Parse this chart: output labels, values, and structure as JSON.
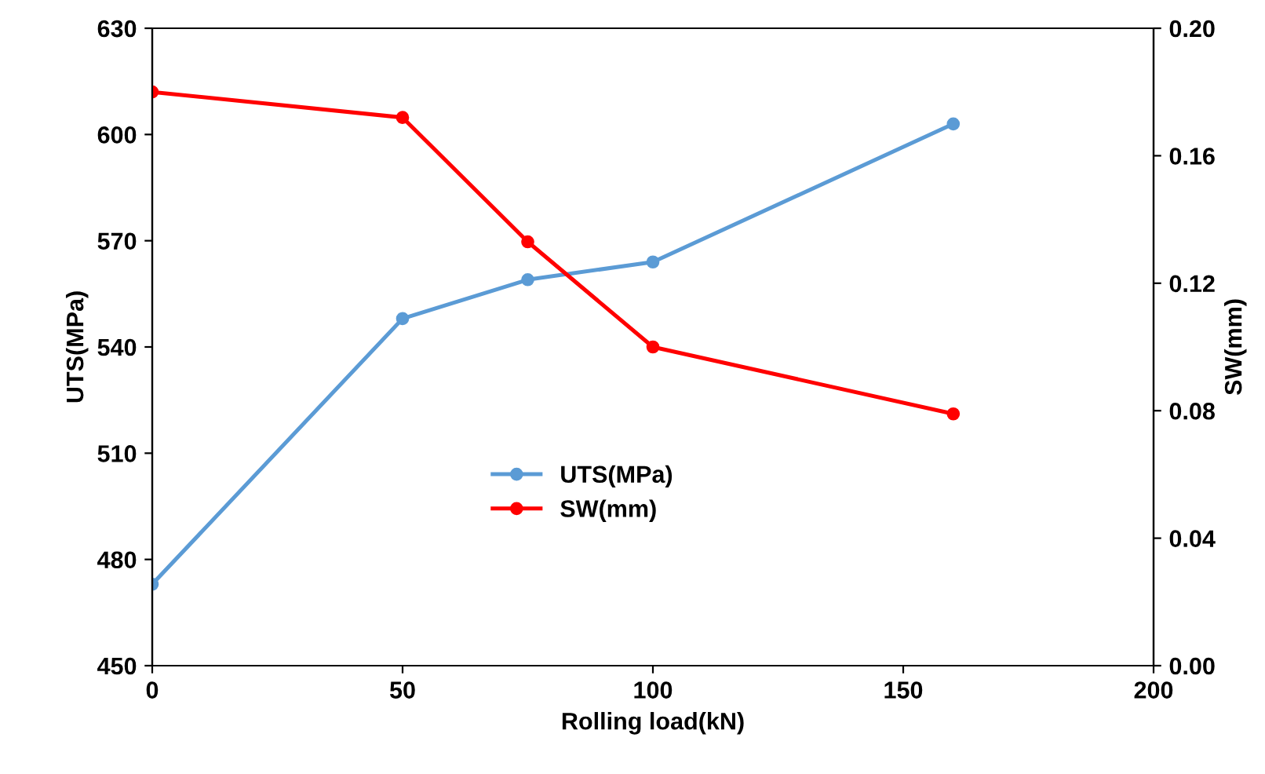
{
  "chart_data": {
    "type": "line",
    "xlabel": "Rolling load(kN)",
    "ylabel": "UTS(MPa)",
    "y2label": "SW(mm)",
    "x": [
      0,
      50,
      75,
      100,
      160
    ],
    "series": [
      {
        "name": "UTS(MPa)",
        "color": "#5b9bd5",
        "values": [
          473,
          548,
          559,
          564,
          603
        ]
      },
      {
        "name": "SW(mm)",
        "color": "#ff0000",
        "axis": "y2",
        "values": [
          0.18,
          0.172,
          0.133,
          0.1,
          0.079
        ]
      }
    ],
    "xlim": [
      0,
      200
    ],
    "xticks": [
      0,
      50,
      100,
      150,
      200
    ],
    "ylim": [
      450,
      630
    ],
    "yticks": [
      450,
      480,
      510,
      540,
      570,
      600,
      630
    ],
    "y2lim": [
      0,
      0.2
    ],
    "y2ticks": [
      {
        "value": 0,
        "label": "0.00"
      },
      {
        "value": 0.04,
        "label": "0.04"
      },
      {
        "value": 0.08,
        "label": "0.08"
      },
      {
        "value": 0.12,
        "label": "0.12"
      },
      {
        "value": 0.16,
        "label": "0.16"
      },
      {
        "value": 0.2,
        "label": "0.20"
      }
    ],
    "marker": "circle",
    "line_style": "solid",
    "legend": "center",
    "grid": false
  }
}
